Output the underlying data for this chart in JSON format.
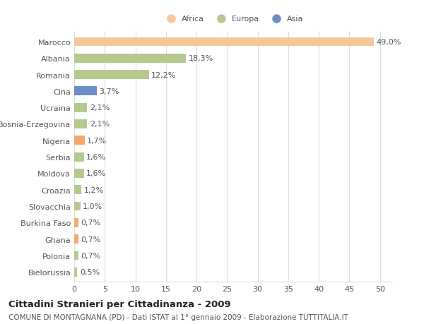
{
  "categories": [
    "Marocco",
    "Albania",
    "Romania",
    "Cina",
    "Ucraina",
    "Bosnia-Erzegovina",
    "Nigeria",
    "Serbia",
    "Moldova",
    "Croazia",
    "Slovacchia",
    "Burkina Faso",
    "Ghana",
    "Polonia",
    "Bielorussia"
  ],
  "values": [
    49.0,
    18.3,
    12.2,
    3.7,
    2.1,
    2.1,
    1.7,
    1.6,
    1.6,
    1.2,
    1.0,
    0.7,
    0.7,
    0.7,
    0.5
  ],
  "labels": [
    "49,0%",
    "18,3%",
    "12,2%",
    "3,7%",
    "2,1%",
    "2,1%",
    "1,7%",
    "1,6%",
    "1,6%",
    "1,2%",
    "1,0%",
    "0,7%",
    "0,7%",
    "0,7%",
    "0,5%"
  ],
  "colors": [
    "#f5c897",
    "#b5c98e",
    "#b5c98e",
    "#6b8ec4",
    "#b5c98e",
    "#b5c98e",
    "#f5a96a",
    "#b5c98e",
    "#b5c98e",
    "#b5c98e",
    "#b5c98e",
    "#f5a96a",
    "#f5a96a",
    "#b5c98e",
    "#b5c98e"
  ],
  "legend_labels": [
    "Africa",
    "Europa",
    "Asia"
  ],
  "legend_colors": [
    "#f5c897",
    "#b5c98e",
    "#6b8ec4"
  ],
  "title_bold": "Cittadini Stranieri per Cittadinanza - 2009",
  "subtitle": "COMUNE DI MONTAGNANA (PD) - Dati ISTAT al 1° gennaio 2009 - Elaborazione TUTTITALIA.IT",
  "xlim": [
    0,
    52
  ],
  "xticks": [
    0,
    5,
    10,
    15,
    20,
    25,
    30,
    35,
    40,
    45,
    50
  ],
  "background_color": "#ffffff",
  "plot_bg": "#ffffff",
  "grid_color": "#dddddd",
  "text_color": "#555555",
  "label_fontsize": 8.0,
  "tick_fontsize": 8.0,
  "title_fontsize": 9.5,
  "subtitle_fontsize": 7.5,
  "bar_height": 0.55
}
